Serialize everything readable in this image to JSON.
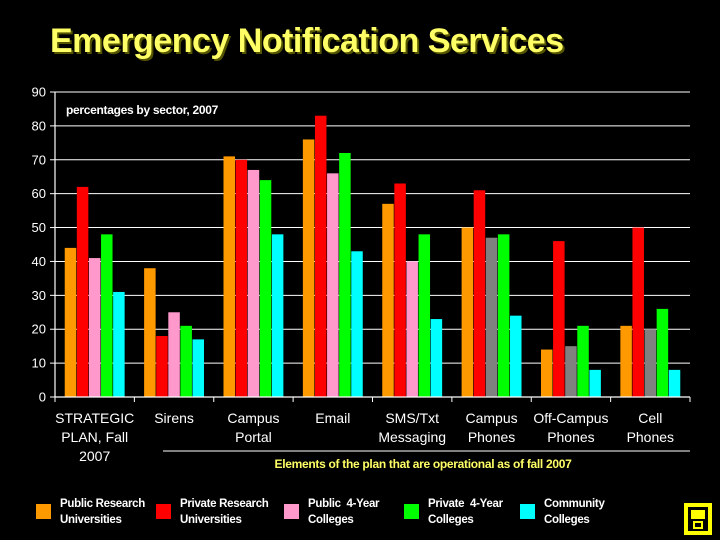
{
  "slide": {
    "title": "Emergency Notification Services"
  },
  "chart_data": {
    "type": "bar",
    "title": "",
    "subtitle": "percentages by sector, 2007",
    "xlabel": "Elements of the plan that are operational as of fall 2007",
    "ylabel": "",
    "ylim": [
      0,
      90
    ],
    "yticks": [
      0,
      10,
      20,
      30,
      40,
      50,
      60,
      70,
      80,
      90
    ],
    "grid": true,
    "legend_position": "bottom",
    "categories": [
      "STRATEGIC PLAN, Fall 2007",
      "Sirens",
      "Campus Portal",
      "Email",
      "SMS/Txt Messaging",
      "Campus Phones",
      "Off-Campus Phones",
      "Cell Phones"
    ],
    "category_lines": [
      [
        "STRATEGIC",
        "PLAN, Fall",
        "2007"
      ],
      [
        "Sirens"
      ],
      [
        "Campus",
        "Portal"
      ],
      [
        "Email"
      ],
      [
        "SMS/Txt",
        "Messaging"
      ],
      [
        "Campus",
        "Phones"
      ],
      [
        "Off-Campus",
        "Phones"
      ],
      [
        "Cell",
        "Phones"
      ]
    ],
    "series": [
      {
        "name": "Public Research Universities",
        "color": "#FF9900",
        "values": [
          44,
          38,
          71,
          76,
          57,
          50,
          14,
          21
        ]
      },
      {
        "name": "Private Research Universities",
        "color": "#FF0000",
        "values": [
          62,
          18,
          70,
          83,
          63,
          61,
          46,
          50
        ]
      },
      {
        "name": "Public 4-Year Colleges",
        "color": "#FF99CC",
        "values": [
          41,
          25,
          67,
          66,
          40,
          47,
          15,
          20
        ]
      },
      {
        "name": "Private 4-Year Colleges",
        "color": "#00FF00",
        "values": [
          48,
          21,
          64,
          72,
          48,
          48,
          21,
          26
        ]
      },
      {
        "name": "Community Colleges",
        "color": "#00FFFF",
        "values": [
          31,
          17,
          48,
          43,
          23,
          24,
          8,
          8
        ]
      }
    ],
    "override_colors": [
      {
        "series": 2,
        "categories": [
          5,
          6,
          7
        ],
        "color": "#808080"
      }
    ],
    "colors": {
      "axis": "#FFFFFF",
      "grid": "#FFFFFF",
      "text": "#FFFFFF",
      "subtitle": "#FFFFFF",
      "xlabel": "#FFFF66"
    }
  },
  "legend": {
    "items": [
      {
        "lines": [
          "Public Research",
          "Universities"
        ],
        "color": "#FF9900"
      },
      {
        "lines": [
          "Private Research",
          "Universities"
        ],
        "color": "#FF0000"
      },
      {
        "lines": [
          "Public  4-Year",
          "Colleges"
        ],
        "color": "#FF99CC"
      },
      {
        "lines": [
          "Private  4-Year",
          "Colleges"
        ],
        "color": "#00FF00"
      },
      {
        "lines": [
          "Community",
          "Colleges"
        ],
        "color": "#00FFFF"
      }
    ]
  },
  "icons": {
    "corner": "phone-booth-icon"
  }
}
